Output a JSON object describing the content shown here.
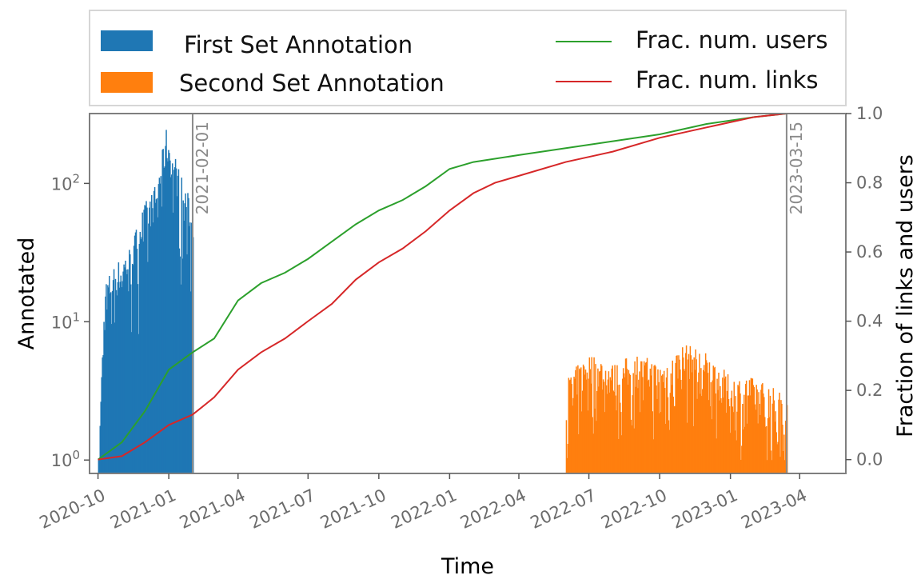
{
  "chart_data": {
    "type": "bar",
    "xlabel": "Time",
    "ylabel_left": "Annotated",
    "ylabel_right": "Fraction of links and users",
    "x_ticks": [
      "2020-10",
      "2021-01",
      "2021-04",
      "2021-07",
      "2021-10",
      "2022-01",
      "2022-04",
      "2022-07",
      "2022-10",
      "2023-01",
      "2023-04"
    ],
    "x_range": [
      "2020-09-20",
      "2023-05-31"
    ],
    "y_left_scale": "log",
    "y_left_ticks": [
      "10^0",
      "10^1",
      "10^2"
    ],
    "y_left_range": [
      0.8,
      320
    ],
    "y_right_ticks": [
      "0.0",
      "0.2",
      "0.4",
      "0.6",
      "0.8",
      "1.0"
    ],
    "y_right_range": [
      -0.04,
      1.0
    ],
    "grid": false,
    "legend_position": "top",
    "vlines": [
      {
        "date": "2021-02-01",
        "label": "2021-02-01"
      },
      {
        "date": "2023-03-15",
        "label": "2023-03-15"
      }
    ],
    "series": [
      {
        "name": "First Set Annotation",
        "kind": "bar",
        "axis": "left",
        "color": "#1f77b4",
        "x_start": "2020-10-01",
        "x_end": "2021-02-01",
        "envelope": [
          {
            "date": "2020-10-01",
            "value": 1
          },
          {
            "date": "2020-10-05",
            "value": 5
          },
          {
            "date": "2020-10-10",
            "value": 20
          },
          {
            "date": "2020-10-20",
            "value": 25
          },
          {
            "date": "2020-11-01",
            "value": 30
          },
          {
            "date": "2020-11-10",
            "value": 35
          },
          {
            "date": "2020-11-20",
            "value": 50
          },
          {
            "date": "2020-12-01",
            "value": 75
          },
          {
            "date": "2020-12-15",
            "value": 100
          },
          {
            "date": "2020-12-28",
            "value": 250
          },
          {
            "date": "2021-01-10",
            "value": 150
          },
          {
            "date": "2021-01-20",
            "value": 100
          },
          {
            "date": "2021-02-01",
            "value": 70
          }
        ]
      },
      {
        "name": "Second Set Annotation",
        "kind": "bar",
        "axis": "left",
        "color": "#ff7f0e",
        "x_start": "2022-06-01",
        "x_end": "2023-03-15",
        "envelope": [
          {
            "date": "2022-06-01",
            "value": 4
          },
          {
            "date": "2022-07-01",
            "value": 6
          },
          {
            "date": "2022-08-01",
            "value": 5
          },
          {
            "date": "2022-09-01",
            "value": 6
          },
          {
            "date": "2022-10-01",
            "value": 5
          },
          {
            "date": "2022-11-01",
            "value": 7
          },
          {
            "date": "2022-12-01",
            "value": 6
          },
          {
            "date": "2023-01-01",
            "value": 4
          },
          {
            "date": "2023-02-01",
            "value": 4
          },
          {
            "date": "2023-03-15",
            "value": 3
          }
        ]
      },
      {
        "name": "Frac. num. users",
        "kind": "line",
        "axis": "right",
        "color": "#2ca02c",
        "points": [
          {
            "date": "2020-10-01",
            "value": 0.0
          },
          {
            "date": "2020-11-01",
            "value": 0.05
          },
          {
            "date": "2020-12-01",
            "value": 0.14
          },
          {
            "date": "2021-01-01",
            "value": 0.26
          },
          {
            "date": "2021-02-01",
            "value": 0.31
          },
          {
            "date": "2021-03-01",
            "value": 0.35
          },
          {
            "date": "2021-04-01",
            "value": 0.46
          },
          {
            "date": "2021-05-01",
            "value": 0.51
          },
          {
            "date": "2021-06-01",
            "value": 0.54
          },
          {
            "date": "2021-07-01",
            "value": 0.58
          },
          {
            "date": "2021-08-01",
            "value": 0.63
          },
          {
            "date": "2021-09-01",
            "value": 0.68
          },
          {
            "date": "2021-10-01",
            "value": 0.72
          },
          {
            "date": "2021-11-01",
            "value": 0.75
          },
          {
            "date": "2021-12-01",
            "value": 0.79
          },
          {
            "date": "2022-01-01",
            "value": 0.84
          },
          {
            "date": "2022-02-01",
            "value": 0.86
          },
          {
            "date": "2022-04-01",
            "value": 0.88
          },
          {
            "date": "2022-06-01",
            "value": 0.9
          },
          {
            "date": "2022-08-01",
            "value": 0.92
          },
          {
            "date": "2022-10-01",
            "value": 0.94
          },
          {
            "date": "2022-12-01",
            "value": 0.97
          },
          {
            "date": "2023-02-01",
            "value": 0.99
          },
          {
            "date": "2023-03-15",
            "value": 1.0
          },
          {
            "date": "2023-05-31",
            "value": 1.0
          }
        ]
      },
      {
        "name": "Frac. num. links",
        "kind": "line",
        "axis": "right",
        "color": "#d62728",
        "points": [
          {
            "date": "2020-10-01",
            "value": 0.0
          },
          {
            "date": "2020-11-01",
            "value": 0.01
          },
          {
            "date": "2020-12-01",
            "value": 0.05
          },
          {
            "date": "2021-01-01",
            "value": 0.1
          },
          {
            "date": "2021-02-01",
            "value": 0.13
          },
          {
            "date": "2021-03-01",
            "value": 0.18
          },
          {
            "date": "2021-04-01",
            "value": 0.26
          },
          {
            "date": "2021-05-01",
            "value": 0.31
          },
          {
            "date": "2021-06-01",
            "value": 0.35
          },
          {
            "date": "2021-07-01",
            "value": 0.4
          },
          {
            "date": "2021-08-01",
            "value": 0.45
          },
          {
            "date": "2021-09-01",
            "value": 0.52
          },
          {
            "date": "2021-10-01",
            "value": 0.57
          },
          {
            "date": "2021-11-01",
            "value": 0.61
          },
          {
            "date": "2021-12-01",
            "value": 0.66
          },
          {
            "date": "2022-01-01",
            "value": 0.72
          },
          {
            "date": "2022-02-01",
            "value": 0.77
          },
          {
            "date": "2022-03-01",
            "value": 0.8
          },
          {
            "date": "2022-04-01",
            "value": 0.82
          },
          {
            "date": "2022-06-01",
            "value": 0.86
          },
          {
            "date": "2022-08-01",
            "value": 0.89
          },
          {
            "date": "2022-10-01",
            "value": 0.93
          },
          {
            "date": "2022-12-01",
            "value": 0.96
          },
          {
            "date": "2023-02-01",
            "value": 0.99
          },
          {
            "date": "2023-03-15",
            "value": 1.0
          },
          {
            "date": "2023-05-31",
            "value": 1.0
          }
        ]
      }
    ]
  }
}
